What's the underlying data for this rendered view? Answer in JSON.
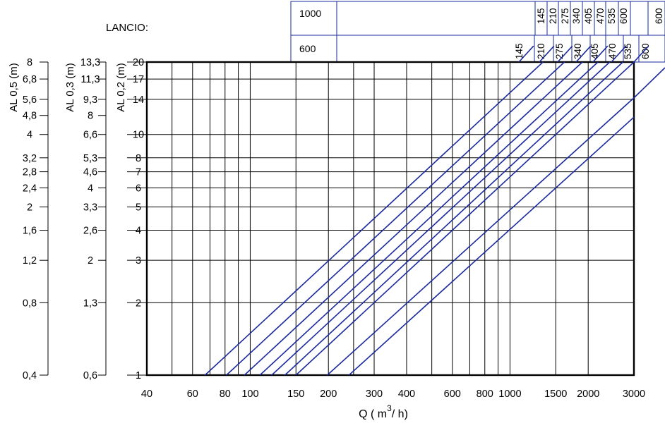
{
  "header": {
    "title": "LANCIO:",
    "row1_label": "1000",
    "row2_label": "600",
    "row1_values": [
      "145",
      "210",
      "275",
      "340",
      "405",
      "470",
      "535",
      "600"
    ],
    "row2_values": [
      "145",
      "210",
      "275",
      "340",
      "405",
      "470",
      "535",
      "600"
    ]
  },
  "colors": {
    "curve": "#1a2a9c",
    "grid": "#000000",
    "header_border": "#1a2a9c"
  },
  "chart_data": {
    "type": "line",
    "xlabel": "Q ( m³/ h)",
    "x_scale": "log",
    "xlim": [
      40,
      3000
    ],
    "x_ticks": [
      {
        "v": 40,
        "label": "40"
      },
      {
        "v": 60,
        "label": "60"
      },
      {
        "v": 80,
        "label": "80"
      },
      {
        "v": 100,
        "label": "100"
      },
      {
        "v": 150,
        "label": "150"
      },
      {
        "v": 200,
        "label": "200"
      },
      {
        "v": 300,
        "label": "300"
      },
      {
        "v": 400,
        "label": "400"
      },
      {
        "v": 600,
        "label": "600"
      },
      {
        "v": 800,
        "label": "800"
      },
      {
        "v": 1000,
        "label": "1000"
      },
      {
        "v": 1500,
        "label": "1500"
      },
      {
        "v": 2000,
        "label": "2000"
      },
      {
        "v": 3000,
        "label": "3000"
      }
    ],
    "x_gridlines": [
      40,
      50,
      60,
      70,
      80,
      90,
      100,
      150,
      200,
      250,
      300,
      400,
      500,
      600,
      700,
      800,
      900,
      1000,
      1500,
      2000,
      3000
    ],
    "y_scale": "log",
    "ylim": [
      1,
      20
    ],
    "y_gridlines": [
      1,
      2,
      3,
      4,
      5,
      6,
      7,
      8,
      10,
      14,
      17,
      20
    ],
    "axes": [
      {
        "label": "AL 0,2 (m)",
        "ticks": [
          {
            "v": 1,
            "label": "1"
          },
          {
            "v": 2,
            "label": "2"
          },
          {
            "v": 3,
            "label": "3"
          },
          {
            "v": 4,
            "label": "4"
          },
          {
            "v": 5,
            "label": "5"
          },
          {
            "v": 6,
            "label": "6"
          },
          {
            "v": 7,
            "label": "7"
          },
          {
            "v": 8,
            "label": "8"
          },
          {
            "v": 10,
            "label": "10"
          },
          {
            "v": 14,
            "label": "14"
          },
          {
            "v": 17,
            "label": "17"
          },
          {
            "v": 20,
            "label": "20"
          }
        ]
      },
      {
        "label": "AL 0,3 (m)",
        "ticks": [
          {
            "v": 1,
            "label": "0,6"
          },
          {
            "v": 2,
            "label": "1,3"
          },
          {
            "v": 3,
            "label": "2"
          },
          {
            "v": 4,
            "label": "2,6"
          },
          {
            "v": 5,
            "label": "3,3"
          },
          {
            "v": 6,
            "label": "4"
          },
          {
            "v": 7,
            "label": "4,6"
          },
          {
            "v": 8,
            "label": "5,3"
          },
          {
            "v": 10,
            "label": "6,6"
          },
          {
            "v": 12,
            "label": "8"
          },
          {
            "v": 14,
            "label": "9,3"
          },
          {
            "v": 17,
            "label": "11,3"
          },
          {
            "v": 20,
            "label": "13,3"
          }
        ]
      },
      {
        "label": "AL 0,5 (m)",
        "ticks": [
          {
            "v": 1,
            "label": "0,4"
          },
          {
            "v": 2,
            "label": "0,8"
          },
          {
            "v": 3,
            "label": "1,2"
          },
          {
            "v": 4,
            "label": "1,6"
          },
          {
            "v": 5,
            "label": "2"
          },
          {
            "v": 6,
            "label": "2,4"
          },
          {
            "v": 7,
            "label": "2,8"
          },
          {
            "v": 8,
            "label": "3,2"
          },
          {
            "v": 10,
            "label": "4"
          },
          {
            "v": 12,
            "label": "4,8"
          },
          {
            "v": 14,
            "label": "5,6"
          },
          {
            "v": 17,
            "label": "6,8"
          },
          {
            "v": 20,
            "label": "8"
          }
        ]
      }
    ],
    "series": [
      {
        "name": "145",
        "points": [
          [
            67,
            1
          ],
          [
            1340,
            20
          ]
        ]
      },
      {
        "name": "210",
        "points": [
          [
            81,
            1
          ],
          [
            1620,
            20
          ]
        ]
      },
      {
        "name": "275",
        "points": [
          [
            95,
            1
          ],
          [
            1900,
            20
          ]
        ]
      },
      {
        "name": "340",
        "points": [
          [
            109,
            1
          ],
          [
            2180,
            20
          ]
        ]
      },
      {
        "name": "405",
        "points": [
          [
            121,
            1
          ],
          [
            2420,
            20
          ]
        ]
      },
      {
        "name": "470",
        "points": [
          [
            136,
            1
          ],
          [
            2720,
            20
          ]
        ]
      },
      {
        "name": "535",
        "points": [
          [
            150,
            1
          ],
          [
            3000,
            20
          ]
        ]
      },
      {
        "name": "600",
        "points": [
          [
            198,
            1
          ],
          [
            3000,
            14.2
          ]
        ]
      },
      {
        "name": "600",
        "points": [
          [
            240,
            1
          ],
          [
            3000,
            11.8
          ]
        ]
      }
    ]
  }
}
